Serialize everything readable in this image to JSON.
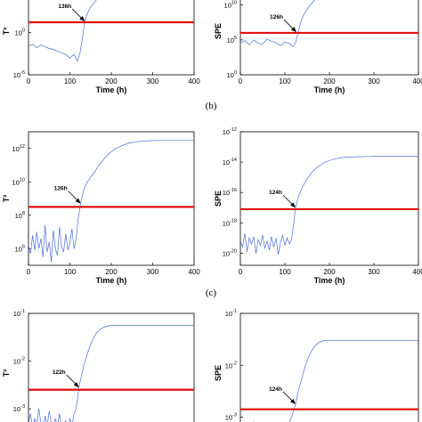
{
  "chart_data": [
    {
      "type": "line",
      "panel": "a-left",
      "scale_y": "log",
      "ylabel": "T²",
      "xlabel": "Time (h)",
      "xlim": [
        0,
        400
      ],
      "xticks": [
        "0",
        "100",
        "200",
        "300",
        "400"
      ],
      "ylim_exp": [
        -5,
        5.3
      ],
      "yticks": [
        {
          "exp": -5,
          "label": "10",
          "sup": "-5"
        },
        {
          "exp": 0,
          "label": "10",
          "sup": "0"
        },
        {
          "exp": 5,
          "label": "10",
          "sup": "5"
        }
      ],
      "threshold_exp": 1.2,
      "annotation": {
        "label": "136h",
        "x": 136,
        "y_exp": 1.3
      },
      "series": [
        {
          "x": [
            0,
            10,
            20,
            30,
            40,
            50,
            60,
            70,
            80,
            90,
            100,
            110,
            118,
            124,
            130,
            136,
            142,
            150,
            160,
            170,
            180,
            190,
            200,
            210
          ],
          "y_exp": [
            -1.6,
            -1.4,
            -1.8,
            -1.5,
            -1.7,
            -1.9,
            -2.0,
            -2.2,
            -2.4,
            -2.6,
            -3.0,
            -2.6,
            -3.4,
            -2.5,
            -0.8,
            1.3,
            2.2,
            3.0,
            3.6,
            4.2,
            4.6,
            4.9,
            5.2,
            5.5
          ]
        }
      ]
    },
    {
      "type": "line",
      "panel": "a-right",
      "scale_y": "log",
      "ylabel": "SPE",
      "xlabel": "Time (h)",
      "xlim": [
        0,
        400
      ],
      "xticks": [
        "0",
        "100",
        "200",
        "300",
        "400"
      ],
      "ylim_exp": [
        0,
        12.5
      ],
      "yticks": [
        {
          "exp": 0,
          "label": "10",
          "sup": "0"
        },
        {
          "exp": 5,
          "label": "10",
          "sup": "5"
        },
        {
          "exp": 10,
          "label": "10",
          "sup": "10"
        }
      ],
      "threshold_exp": 6.0,
      "annotation": {
        "label": "126h",
        "x": 126,
        "y_exp": 6.1
      },
      "series": [
        {
          "x": [
            0,
            10,
            20,
            30,
            40,
            50,
            60,
            70,
            80,
            90,
            100,
            110,
            118,
            124,
            130,
            136,
            142,
            150,
            160,
            170,
            180,
            190,
            200,
            210
          ],
          "y_exp": [
            4.6,
            4.9,
            4.3,
            5.0,
            4.5,
            4.4,
            5.1,
            4.8,
            4.6,
            4.2,
            4.7,
            4.5,
            4.0,
            4.6,
            6.1,
            7.6,
            8.6,
            9.4,
            10.2,
            11.0,
            11.6,
            12.1,
            12.5,
            12.9
          ]
        }
      ]
    },
    {
      "type": "line",
      "panel": "b-left",
      "scale_y": "log",
      "ylabel": "T²",
      "xlabel": "Time (h)",
      "xlim": [
        0,
        400
      ],
      "xticks": [
        "0",
        "100",
        "200",
        "300",
        "400"
      ],
      "ylim_exp": [
        5,
        13
      ],
      "yticks": [
        {
          "exp": 6,
          "label": "10",
          "sup": "6"
        },
        {
          "exp": 8,
          "label": "10",
          "sup": "8"
        },
        {
          "exp": 10,
          "label": "10",
          "sup": "10"
        },
        {
          "exp": 12,
          "label": "10",
          "sup": "12"
        }
      ],
      "threshold_exp": 8.5,
      "annotation": {
        "label": "126h",
        "x": 126,
        "y_exp": 8.7
      },
      "series": [
        {
          "x": [
            0,
            5,
            10,
            15,
            20,
            25,
            30,
            35,
            40,
            45,
            50,
            55,
            60,
            65,
            70,
            75,
            80,
            85,
            90,
            95,
            100,
            105,
            110,
            115,
            120,
            126,
            132,
            140,
            150,
            160,
            170,
            180,
            190,
            200,
            210,
            220,
            230,
            240,
            250,
            260,
            270,
            280,
            290,
            300,
            320,
            340,
            360,
            380,
            400
          ],
          "y_exp": [
            6.2,
            5.7,
            6.8,
            5.9,
            7.0,
            6.0,
            6.6,
            5.5,
            7.4,
            5.8,
            6.4,
            5.2,
            7.1,
            6.0,
            5.6,
            7.3,
            6.1,
            5.8,
            6.9,
            5.9,
            6.3,
            7.2,
            6.0,
            6.6,
            7.8,
            8.7,
            9.4,
            9.9,
            10.3,
            10.6,
            11.0,
            11.3,
            11.6,
            11.8,
            12.0,
            12.1,
            12.2,
            12.3,
            12.35,
            12.4,
            12.42,
            12.45,
            12.46,
            12.47,
            12.48,
            12.48,
            12.48,
            12.48,
            12.48
          ]
        }
      ]
    },
    {
      "type": "line",
      "panel": "b-right",
      "scale_y": "log",
      "ylabel": "SPE",
      "xlabel": "Time (h)",
      "xlim": [
        0,
        400
      ],
      "xticks": [
        "0",
        "100",
        "200",
        "300",
        "400"
      ],
      "ylim_exp": [
        -20.8,
        -12
      ],
      "yticks": [
        {
          "exp": -20,
          "label": "10",
          "sup": "-20"
        },
        {
          "exp": -18,
          "label": "10",
          "sup": "-18"
        },
        {
          "exp": -16,
          "label": "10",
          "sup": "-16"
        },
        {
          "exp": -14,
          "label": "10",
          "sup": "-14"
        },
        {
          "exp": -12,
          "label": "10",
          "sup": "-12"
        }
      ],
      "threshold_exp": -17.1,
      "annotation": {
        "label": "124h",
        "x": 124,
        "y_exp": -17.0
      },
      "series": [
        {
          "x": [
            0,
            5,
            10,
            15,
            20,
            25,
            30,
            35,
            40,
            45,
            50,
            55,
            60,
            65,
            70,
            75,
            80,
            85,
            90,
            95,
            100,
            105,
            110,
            115,
            120,
            124,
            130,
            140,
            150,
            160,
            170,
            180,
            190,
            200,
            210,
            220,
            230,
            240,
            250,
            260,
            270,
            280,
            290,
            300,
            320,
            340,
            360,
            380,
            400
          ],
          "y_exp": [
            -19.2,
            -19.6,
            -18.7,
            -19.9,
            -19.0,
            -19.4,
            -18.9,
            -20.0,
            -19.1,
            -19.5,
            -18.8,
            -19.7,
            -19.2,
            -19.8,
            -18.9,
            -19.6,
            -19.0,
            -20.1,
            -19.3,
            -18.8,
            -19.5,
            -19.0,
            -19.4,
            -19.1,
            -18.0,
            -17.0,
            -16.3,
            -15.6,
            -15.1,
            -14.7,
            -14.4,
            -14.2,
            -14.0,
            -13.9,
            -13.8,
            -13.75,
            -13.7,
            -13.68,
            -13.66,
            -13.65,
            -13.64,
            -13.63,
            -13.63,
            -13.62,
            -13.62,
            -13.62,
            -13.62,
            -13.62,
            -13.62
          ]
        }
      ]
    },
    {
      "type": "line",
      "panel": "c-left",
      "scale_y": "log",
      "ylabel": "T²",
      "xlim": [
        0,
        400
      ],
      "ylim_exp": [
        -3.5,
        -1
      ],
      "yticks": [
        {
          "exp": -3,
          "label": "10",
          "sup": "-3"
        },
        {
          "exp": -2,
          "label": "10",
          "sup": "-2"
        },
        {
          "exp": -1,
          "label": "10",
          "sup": "-1"
        }
      ],
      "threshold_exp": -2.6,
      "annotation": {
        "label": "122h",
        "x": 122,
        "y_exp": -2.55
      },
      "series": [
        {
          "x": [
            0,
            5,
            10,
            15,
            20,
            25,
            30,
            35,
            40,
            45,
            50,
            55,
            60,
            65,
            70,
            75,
            80,
            85,
            90,
            95,
            100,
            105,
            110,
            115,
            122,
            128,
            135,
            142,
            150,
            158,
            165,
            175,
            185,
            195,
            210,
            230,
            250,
            270,
            290,
            310,
            330,
            350,
            370,
            390,
            400
          ],
          "y_exp": [
            -3.3,
            -3.1,
            -3.4,
            -3.2,
            -3.35,
            -3.0,
            -3.3,
            -3.4,
            -3.15,
            -3.35,
            -3.05,
            -3.3,
            -3.45,
            -3.2,
            -3.35,
            -3.1,
            -3.4,
            -3.3,
            -3.25,
            -3.45,
            -3.2,
            -3.35,
            -3.1,
            -3.0,
            -2.55,
            -2.3,
            -2.05,
            -1.85,
            -1.65,
            -1.5,
            -1.4,
            -1.32,
            -1.28,
            -1.26,
            -1.25,
            -1.25,
            -1.25,
            -1.25,
            -1.25,
            -1.25,
            -1.25,
            -1.25,
            -1.25,
            -1.25,
            -1.25
          ]
        }
      ]
    },
    {
      "type": "line",
      "panel": "c-right",
      "scale_y": "log",
      "ylabel": "SPE",
      "xlim": [
        0,
        400
      ],
      "ylim_exp": [
        -3.3,
        -1
      ],
      "yticks": [
        {
          "exp": -3,
          "label": "10",
          "sup": "-3"
        },
        {
          "exp": -2,
          "label": "10",
          "sup": "-2"
        },
        {
          "exp": -1,
          "label": "10",
          "sup": "-1"
        }
      ],
      "threshold_exp": -2.85,
      "annotation": {
        "label": "124h",
        "x": 124,
        "y_exp": -2.75
      },
      "series": [
        {
          "x": [
            0,
            5,
            10,
            15,
            20,
            25,
            30,
            35,
            40,
            45,
            50,
            55,
            60,
            65,
            70,
            75,
            80,
            85,
            90,
            95,
            100,
            105,
            110,
            115,
            124,
            130,
            138,
            146,
            155,
            165,
            175,
            185,
            195,
            205,
            220,
            240,
            260,
            280,
            300,
            320,
            340,
            360,
            380,
            400
          ],
          "y_exp": [
            -3.2,
            -3.25,
            -3.15,
            -3.3,
            -3.2,
            -3.28,
            -3.1,
            -3.25,
            -3.3,
            -3.18,
            -3.25,
            -3.3,
            -3.2,
            -3.3,
            -3.15,
            -3.28,
            -3.3,
            -3.22,
            -3.3,
            -3.25,
            -3.3,
            -3.2,
            -3.1,
            -3.0,
            -2.75,
            -2.5,
            -2.25,
            -2.0,
            -1.8,
            -1.65,
            -1.57,
            -1.53,
            -1.52,
            -1.52,
            -1.52,
            -1.52,
            -1.52,
            -1.52,
            -1.52,
            -1.52,
            -1.52,
            -1.52,
            -1.52,
            -1.52
          ]
        }
      ]
    }
  ],
  "captions": {
    "b": "(b)",
    "c": "(c)"
  },
  "colors": {
    "series": "#4a6fd6",
    "threshold": "#dd1111",
    "axis": "#000000"
  }
}
